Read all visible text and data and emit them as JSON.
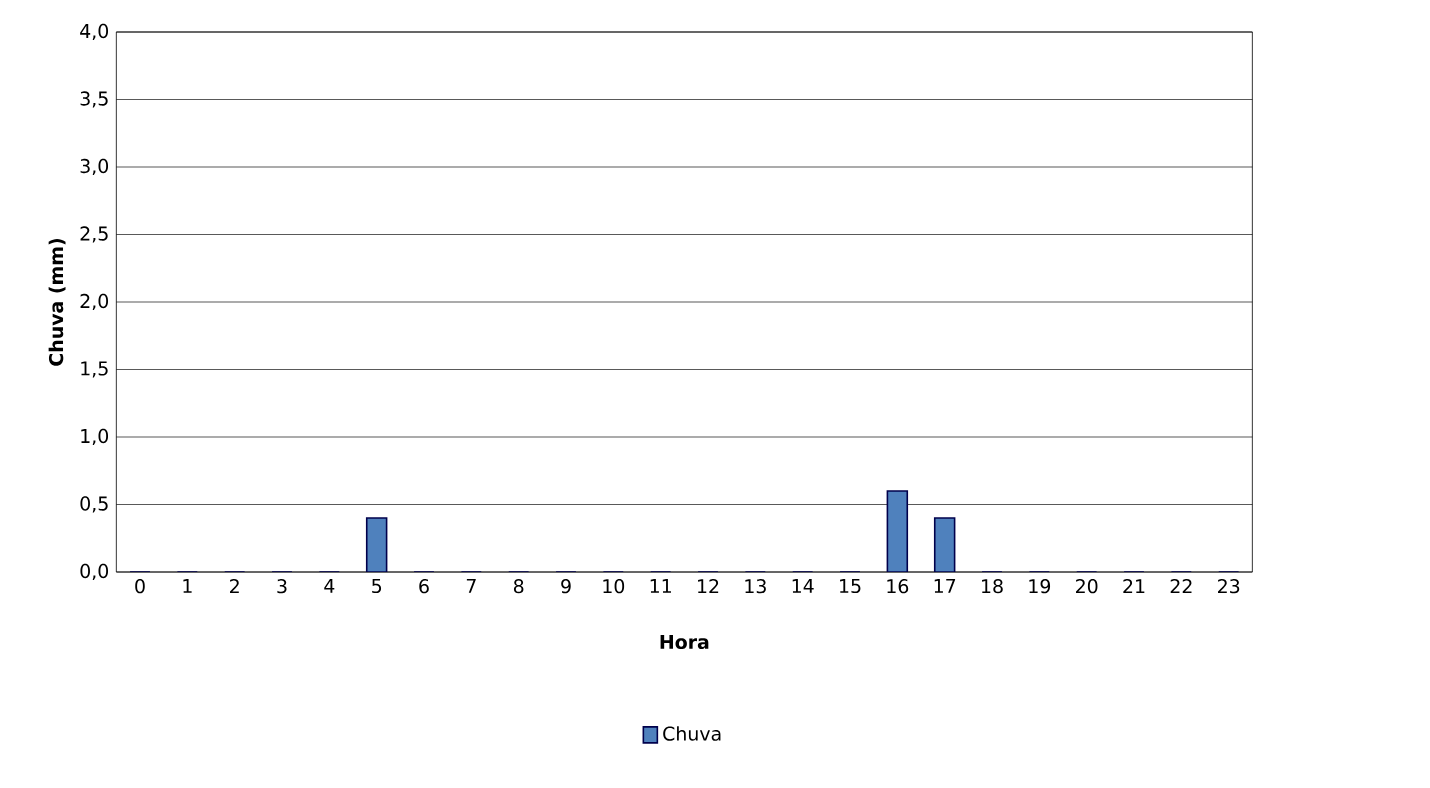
{
  "chart_data": {
    "type": "bar",
    "xlabel": "Hora",
    "ylabel": "Chuva (mm)",
    "categories": [
      "0",
      "1",
      "2",
      "3",
      "4",
      "5",
      "6",
      "7",
      "8",
      "9",
      "10",
      "11",
      "12",
      "13",
      "14",
      "15",
      "16",
      "17",
      "18",
      "19",
      "20",
      "21",
      "22",
      "23"
    ],
    "series": [
      {
        "name": "Chuva",
        "color": "#4f81bd",
        "values": [
          0,
          0,
          0,
          0,
          0,
          0.4,
          0,
          0,
          0,
          0,
          0,
          0,
          0,
          0,
          0,
          0,
          0.6,
          0.4,
          0,
          0,
          0,
          0,
          0,
          0
        ]
      }
    ],
    "ylim": [
      0,
      4
    ],
    "yticks": [
      {
        "value": 0,
        "label": "0,0"
      },
      {
        "value": 0.5,
        "label": "0,5"
      },
      {
        "value": 1,
        "label": "1,0"
      },
      {
        "value": 1.5,
        "label": "1,5"
      },
      {
        "value": 2,
        "label": "2,0"
      },
      {
        "value": 2.5,
        "label": "2,5"
      },
      {
        "value": 3,
        "label": "3,0"
      },
      {
        "value": 3.5,
        "label": "3,5"
      },
      {
        "value": 4,
        "label": "4,0"
      }
    ],
    "grid": "y",
    "legend": "bottom"
  }
}
